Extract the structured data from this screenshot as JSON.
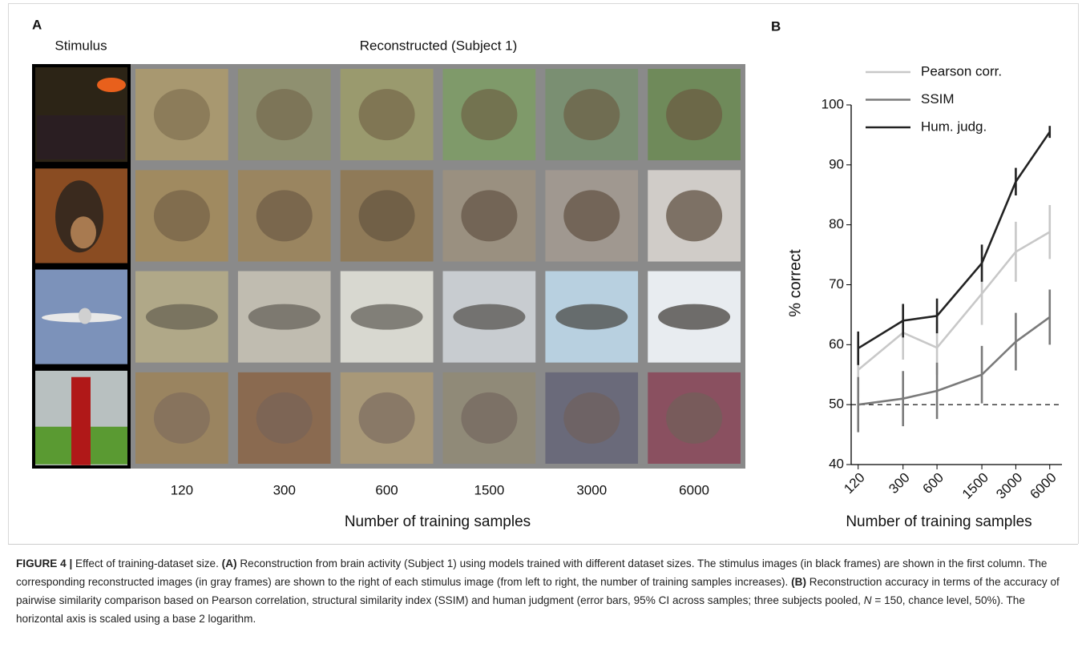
{
  "panel_a": {
    "label": "A",
    "stimulus_header": "Stimulus",
    "reconstructed_header": "Reconstructed (Subject 1)",
    "column_labels": [
      "120",
      "300",
      "600",
      "1500",
      "3000",
      "6000"
    ],
    "x_label": "Number of training samples"
  },
  "panel_b_label": "B",
  "chart_data": {
    "type": "line",
    "x": [
      120,
      300,
      600,
      1500,
      3000,
      6000
    ],
    "xscale": "log",
    "xlim": [
      104,
      7700
    ],
    "xticks": [
      120,
      300,
      600,
      1500,
      3000,
      6000
    ],
    "ylim": [
      40,
      100
    ],
    "yticks": [
      40,
      50,
      60,
      70,
      80,
      90,
      100
    ],
    "xlabel": "Number of training samples",
    "ylabel": "% correct",
    "hline": 50,
    "grid": false,
    "legend": "upper left",
    "series": [
      {
        "name": "Pearson corr.",
        "color": "#c8c8c8",
        "values": [
          55.8,
          62,
          59.5,
          68.5,
          75.5,
          78.8
        ],
        "errors": [
          4.7,
          4.5,
          4.5,
          5.2,
          5,
          4.5
        ]
      },
      {
        "name": "SSIM",
        "color": "#7a7a7a",
        "values": [
          50,
          51,
          52.3,
          55,
          60.5,
          64.6
        ],
        "errors": [
          4.6,
          4.6,
          4.7,
          4.8,
          4.8,
          4.6
        ]
      },
      {
        "name": "Hum. judg.",
        "color": "#222222",
        "values": [
          59.4,
          64,
          64.8,
          73.6,
          87.2,
          95.5
        ],
        "errors": [
          2.8,
          2.8,
          2.9,
          3.1,
          2.3,
          1.0
        ]
      }
    ]
  },
  "caption": [
    {
      "text": "FIGURE 4 |",
      "style": "bold"
    },
    {
      "text": " Effect of training-dataset size. ",
      "style": "normal"
    },
    {
      "text": "(A)",
      "style": "bold"
    },
    {
      "text": " Reconstruction from brain activity (Subject 1) using models trained with different dataset sizes. The stimulus images (in black frames) are shown in the first column. The corresponding reconstructed images (in gray frames) are shown to the right of each stimulus image (from left to right, the number of training samples increases). ",
      "style": "normal"
    },
    {
      "text": "(B)",
      "style": "bold"
    },
    {
      "text": " Reconstruction accuracy in terms of the accuracy of pairwise similarity comparison based on Pearson correlation, structural similarity index (SSIM) and human judgment (error bars, 95% CI across samples; three subjects pooled, ",
      "style": "normal"
    },
    {
      "text": "N",
      "style": "italic"
    },
    {
      "text": " = 150, chance level, 50%). The horizontal axis is scaled using a base 2 logarithm.",
      "style": "normal"
    }
  ]
}
